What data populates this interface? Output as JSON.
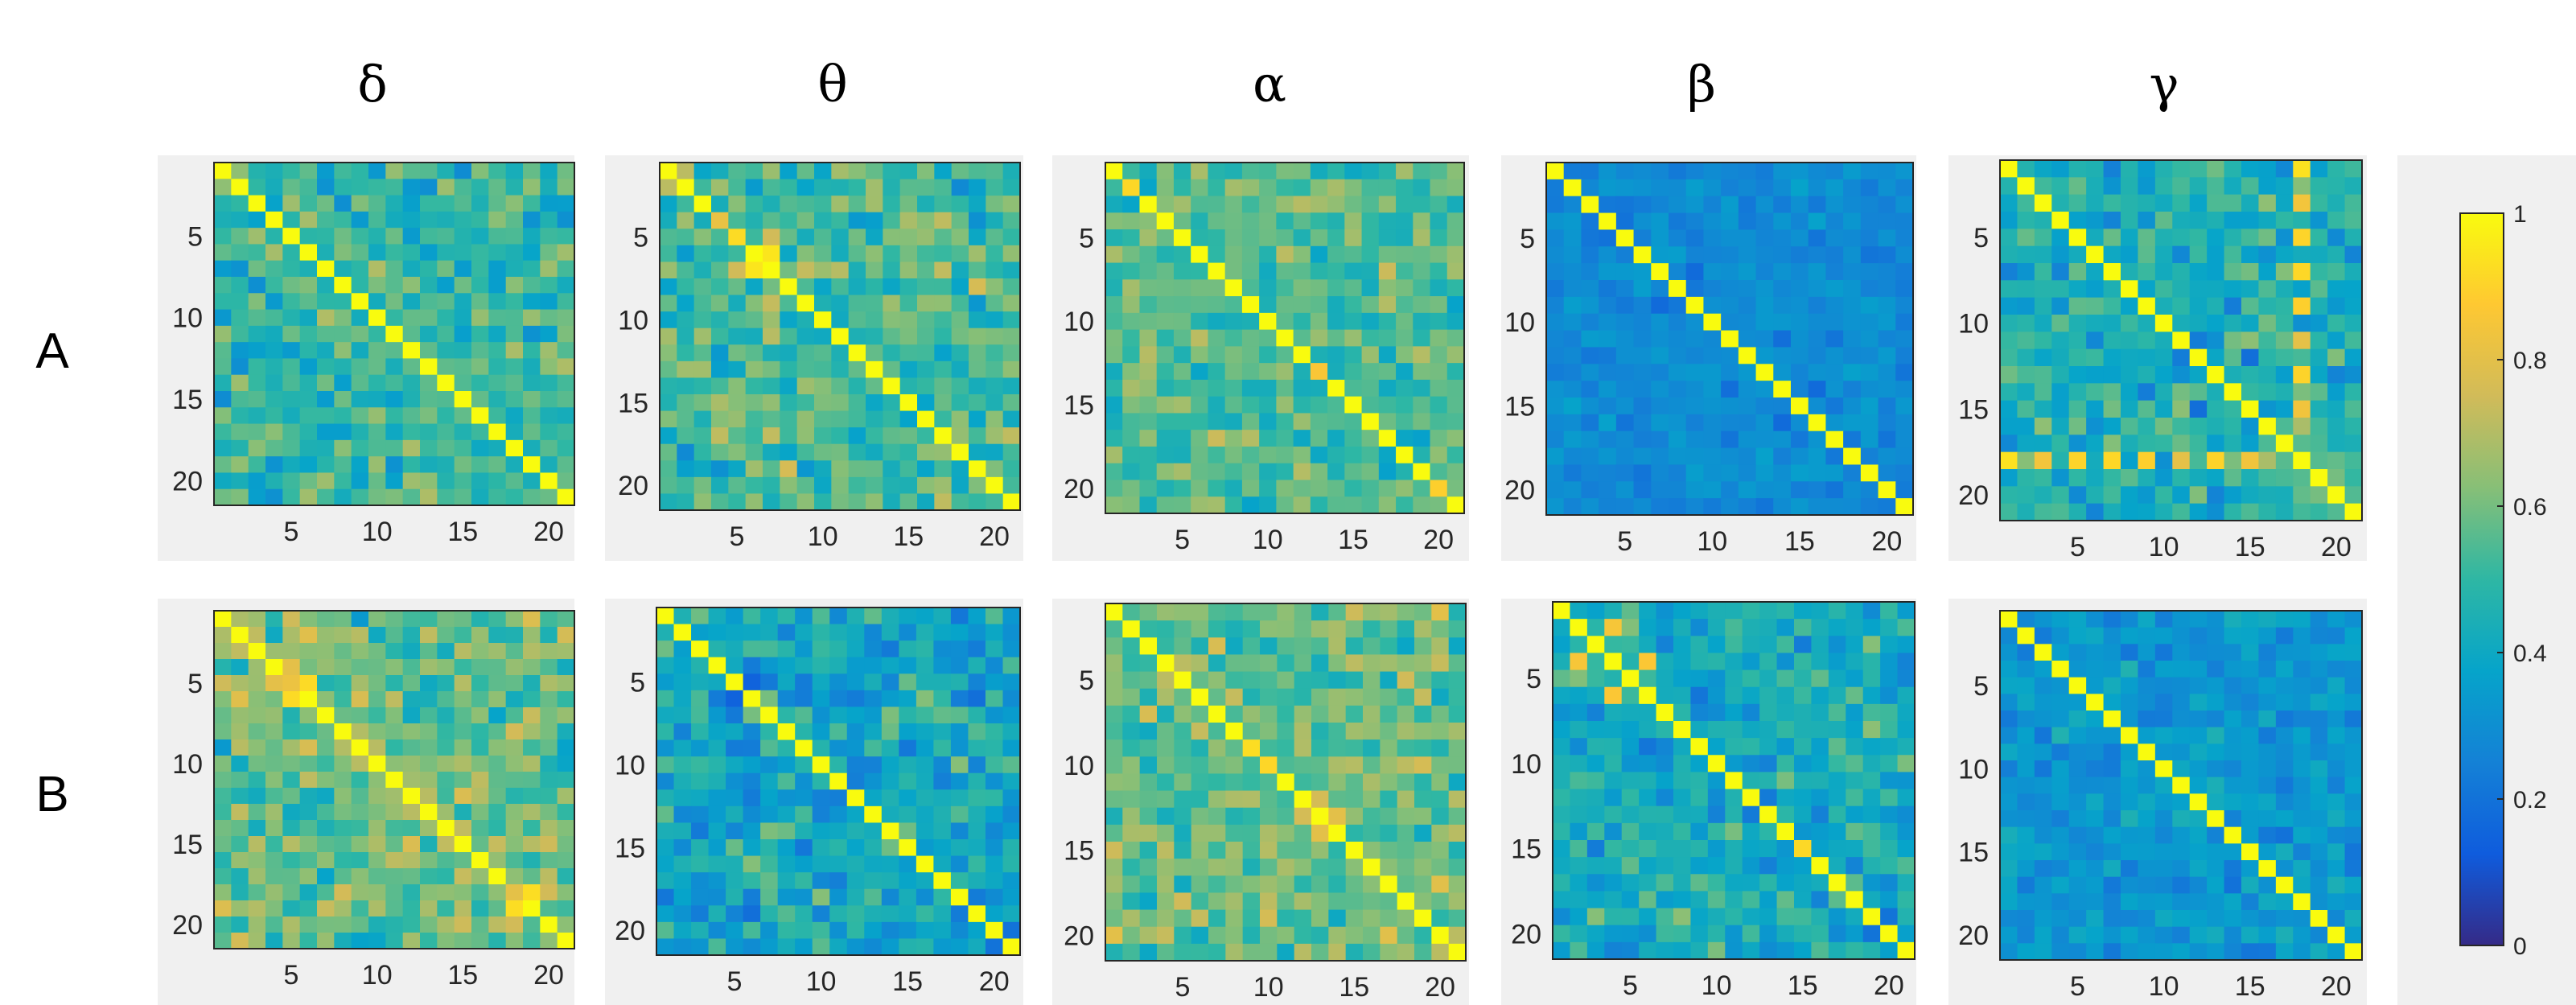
{
  "figure": {
    "column_labels": [
      "δ",
      "θ",
      "α",
      "β",
      "γ"
    ],
    "row_labels": [
      "A",
      "B"
    ],
    "colorbar": {
      "min": 0,
      "max": 1,
      "ticks": [
        "0",
        "0.2",
        "0.4",
        "0.6",
        "0.8",
        "1"
      ]
    }
  },
  "chart_data": {
    "type": "heatmap",
    "matrix_size": 21,
    "x_ticks": [
      "5",
      "10",
      "15",
      "20"
    ],
    "y_ticks": [
      "5",
      "10",
      "15",
      "20"
    ],
    "tick_values": [
      5,
      10,
      15,
      20
    ],
    "colormap": "parula",
    "colormap_stops": [
      "#352a87",
      "#0f5cdd",
      "#1481d6",
      "#06a4ca",
      "#2eb7a4",
      "#87bf77",
      "#d1bb59",
      "#fec832",
      "#f9fb0e"
    ],
    "diagonal_value": 1.0,
    "panels": [
      {
        "row": "A",
        "band": "δ",
        "mean": 0.5,
        "spread": 0.16,
        "hot": []
      },
      {
        "row": "A",
        "band": "θ",
        "mean": 0.52,
        "spread": 0.18,
        "hot": [
          [
            3,
            3
          ],
          [
            4,
            4
          ],
          [
            6,
            5
          ]
        ]
      },
      {
        "row": "A",
        "band": "α",
        "mean": 0.55,
        "spread": 0.16,
        "hot": [
          [
            1,
            1
          ],
          [
            12,
            12
          ],
          [
            19,
            19
          ]
        ]
      },
      {
        "row": "A",
        "band": "β",
        "mean": 0.28,
        "spread": 0.08,
        "hot": []
      },
      {
        "row": "A",
        "band": "γ",
        "mean": 0.45,
        "spread": 0.18,
        "hot": [
          [
            17,
            0
          ],
          [
            17,
            2
          ],
          [
            17,
            4
          ],
          [
            17,
            6
          ],
          [
            17,
            8
          ],
          [
            17,
            10
          ],
          [
            17,
            12
          ],
          [
            17,
            14
          ]
        ]
      },
      {
        "row": "B",
        "band": "δ",
        "mean": 0.58,
        "spread": 0.17,
        "hot": [
          [
            4,
            4
          ],
          [
            4,
            5
          ],
          [
            5,
            4
          ],
          [
            17,
            17
          ],
          [
            17,
            18
          ],
          [
            18,
            17
          ]
        ]
      },
      {
        "row": "B",
        "band": "θ",
        "mean": 0.4,
        "spread": 0.17,
        "hot": []
      },
      {
        "row": "B",
        "band": "α",
        "mean": 0.58,
        "spread": 0.16,
        "hot": [
          [
            8,
            8
          ],
          [
            9,
            9
          ]
        ]
      },
      {
        "row": "B",
        "band": "β",
        "mean": 0.42,
        "spread": 0.16,
        "hot": [
          [
            3,
            1
          ],
          [
            3,
            5
          ],
          [
            14,
            14
          ]
        ]
      },
      {
        "row": "B",
        "band": "γ",
        "mean": 0.33,
        "spread": 0.1,
        "hot": []
      }
    ]
  }
}
